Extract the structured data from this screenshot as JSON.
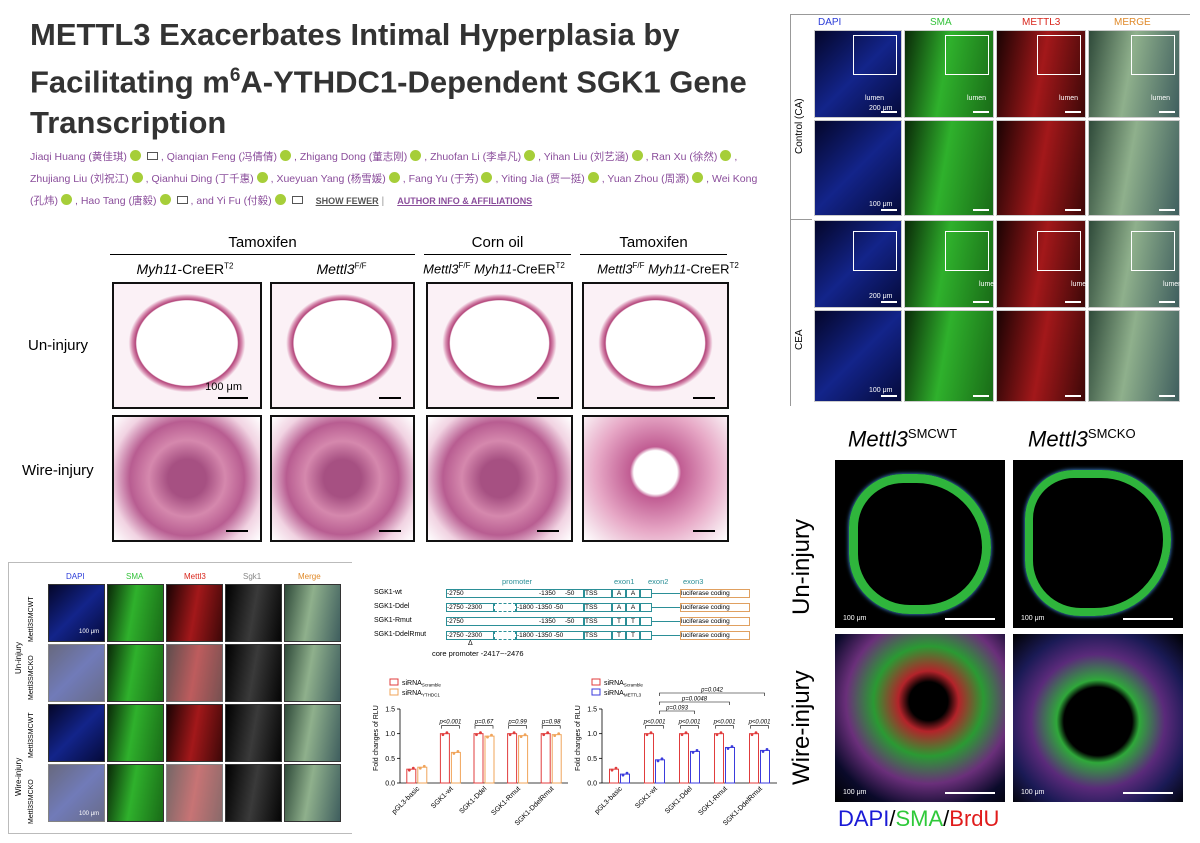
{
  "paper": {
    "title": "METTL3 Exacerbates Intimal Hyperplasia by Facilitating m6A-YTHDC1-Dependent SGK1 Gene Transcription",
    "title_parts": [
      "METTL3 Exacerbates Intimal Hyperplasia by Facilitating m",
      "6",
      "A-YTHDC1-Dependent SGK1 Gene Transcription"
    ],
    "authors": [
      "Jiaqi Huang (黄佳琪)",
      "Qianqian Feng (冯倩倩)",
      "Zhigang Dong (董志刚)",
      "Zhuofan Li (李卓凡)",
      "Yihan Liu (刘艺涵)",
      "Ran Xu (徐然)",
      "Zhujiang Liu (刘祝江)",
      "Qianhui Ding (丁千惠)",
      "Xueyuan Yang (杨雪媛)",
      "Fang Yu (于芳)",
      "Yiting Jia (贾一挺)",
      "Yuan Zhou (周源)",
      "Wei Kong (孔炜)",
      "Hao Tang (唐毅)",
      "and Yi Fu (付毅)"
    ],
    "show_fewer": "SHOW FEWER",
    "author_info": "AUTHOR INFO & AFFILIATIONS"
  },
  "he_panel": {
    "groups": [
      {
        "label": "Tamoxifen"
      },
      {
        "label": "Corn oil"
      },
      {
        "label": "Tamoxifen"
      }
    ],
    "columns": [
      {
        "name": "Myh11",
        "suffix": "-CreER",
        "sup": "T2"
      },
      {
        "name": "Mettl3",
        "suffix": "",
        "sup": "F/F"
      },
      {
        "name": "Mettl3",
        "sup": "F/F",
        "name2": "Myh11",
        "suffix": "-CreER",
        "sup2": "T2"
      },
      {
        "name": "Mettl3",
        "sup": "F/F",
        "name2": "Myh11",
        "suffix": "-CreER",
        "sup2": "T2"
      }
    ],
    "rows": [
      "Un-injury",
      "Wire-injury"
    ],
    "scale": "100 μm"
  },
  "if_human": {
    "channels": [
      "DAPI",
      "SMA",
      "METTL3",
      "MERGE"
    ],
    "channel_colors": [
      "#2a3bd8",
      "#33c23a",
      "#d9261c",
      "#e08a2a"
    ],
    "groups": [
      "Control (CA)",
      "CEA"
    ],
    "lumen": "lumen",
    "scale_200": "200 μm",
    "scale_100": "100 μm"
  },
  "brdu": {
    "columns": [
      {
        "name": "Mettl3",
        "sup": "SMCWT"
      },
      {
        "name": "Mettl3",
        "sup": "SMCKO"
      }
    ],
    "rows": [
      "Un-injury",
      "Wire-injury"
    ],
    "legend": [
      "DAPI",
      "/",
      "SMA",
      "/",
      "BrdU"
    ],
    "legend_colors": [
      "#1a1ad6",
      "#000000",
      "#2fc93a",
      "#000000",
      "#e01b1b"
    ],
    "scale": "100 μm"
  },
  "if_mouse": {
    "channels": [
      "DAPI",
      "SMA",
      "Mettl3",
      "Sgk1",
      "Merge"
    ],
    "channel_colors": [
      "#2a3bd8",
      "#33c23a",
      "#d9261c",
      "#888888",
      "#e08a2a"
    ],
    "groups": [
      "Un-injury",
      "Wire-injury"
    ],
    "rows": [
      "Mettl3SMCWT",
      "Mettl3SMCKO",
      "Mettl3SMCWT",
      "Mettl3SMCKO"
    ],
    "scale": "100 μm"
  },
  "promoter": {
    "labels": {
      "promoter": "promoter",
      "exon1": "exon1",
      "exon2": "exon2",
      "exon3": "exon3"
    },
    "constructs": [
      {
        "name": "SGK1-wt",
        "a": "-2750",
        "b": "",
        "c": "-1350",
        "d": "-50",
        "tss": "TSS",
        "m1": "A",
        "m2": "A",
        "luc": "luciferase coding"
      },
      {
        "name": "SGK1-Ddel",
        "a": "-2750",
        "b": "-2300",
        "c": "-1800",
        "d": "-1350 -50",
        "tss": "TSS",
        "m1": "A",
        "m2": "A",
        "luc": "luciferase coding"
      },
      {
        "name": "SGK1-Rmut",
        "a": "-2750",
        "b": "",
        "c": "-1350",
        "d": "-50",
        "tss": "TSS",
        "m1": "T",
        "m2": "T",
        "luc": "luciferase coding"
      },
      {
        "name": "SGK1-DdelRmut",
        "a": "-2750",
        "b": "-2300",
        "c": "-1800",
        "d": "-1350 -50",
        "tss": "TSS",
        "m1": "T",
        "m2": "T",
        "luc": "luciferase coding"
      }
    ],
    "core": "core promoter -2417~-2476"
  },
  "chart_data": [
    {
      "type": "bar",
      "categories": [
        "pGL3-basic",
        "SGK1-wt",
        "SGK1-Ddel",
        "SGK1-Rmut",
        "SGK1-DdelRmut"
      ],
      "series": [
        {
          "name": "siRNAScramble",
          "name_main": "siRNA",
          "name_sub": "Scramble",
          "color": "#e03c3c",
          "values": [
            0.28,
            1.0,
            1.0,
            1.0,
            1.0
          ]
        },
        {
          "name": "siRNAYTHDC1",
          "name_main": "siRNA",
          "name_sub": "YTHDC1",
          "color": "#f0a45a",
          "values": [
            0.32,
            0.62,
            0.95,
            0.96,
            0.98
          ]
        }
      ],
      "pvalues": [
        "p<0.001",
        "p=0.67",
        "p=0.99",
        "p=0.98"
      ],
      "ylabel": "Fold changes of RLU",
      "ylim": [
        0,
        1.5
      ],
      "yticks": [
        "0.0",
        "0.5",
        "1.0",
        "1.5"
      ]
    },
    {
      "type": "bar",
      "categories": [
        "pGL3-basic",
        "SGK1-wt",
        "SGK1-Ddel",
        "SGK1-Rmut",
        "SGK1-DdelRmut"
      ],
      "series": [
        {
          "name": "siRNAScramble",
          "name_main": "siRNA",
          "name_sub": "Scramble",
          "color": "#e03c3c",
          "values": [
            0.28,
            1.0,
            1.0,
            1.0,
            1.0
          ]
        },
        {
          "name": "siRNAMETTL3",
          "name_main": "siRNA",
          "name_sub": "METTL3",
          "color": "#3b3bdc",
          "values": [
            0.18,
            0.47,
            0.64,
            0.72,
            0.66
          ]
        }
      ],
      "pvalues": [
        "p<0.001",
        "p<0.001",
        "p<0.001",
        "p<0.001"
      ],
      "extra_pvalues": [
        "p=0.042",
        "p=0.0048",
        "p=0.093"
      ],
      "ylabel": "Fold changes of RLU",
      "ylim": [
        0,
        1.5
      ],
      "yticks": [
        "0.0",
        "0.5",
        "1.0",
        "1.5"
      ]
    }
  ]
}
